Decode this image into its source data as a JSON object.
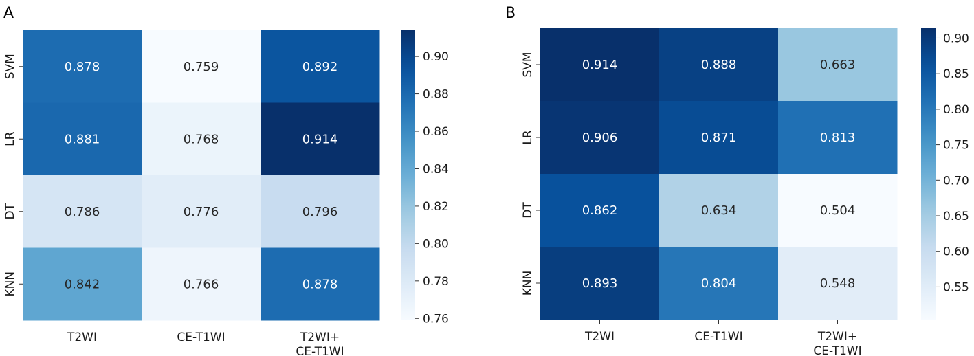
{
  "chart_data": [
    {
      "type": "heatmap",
      "panel_label": "A",
      "rows": [
        "SVM",
        "LR",
        "DT",
        "KNN"
      ],
      "columns": [
        [
          "T2WI"
        ],
        [
          "CE-T1WI"
        ],
        [
          "T2WI+",
          "CE-T1WI"
        ]
      ],
      "values": [
        [
          0.878,
          0.759,
          0.892
        ],
        [
          0.881,
          0.768,
          0.914
        ],
        [
          0.786,
          0.776,
          0.796
        ],
        [
          0.842,
          0.766,
          0.878
        ]
      ],
      "value_labels": [
        [
          "0.878",
          "0.759",
          "0.892"
        ],
        [
          "0.881",
          "0.768",
          "0.914"
        ],
        [
          "0.786",
          "0.776",
          "0.796"
        ],
        [
          "0.842",
          "0.766",
          "0.878"
        ]
      ],
      "colorbar": {
        "vmin": 0.759,
        "vmax": 0.914,
        "ticks": [
          0.76,
          0.78,
          0.8,
          0.82,
          0.84,
          0.86,
          0.88,
          0.9
        ],
        "tick_labels": [
          "0.76",
          "0.78",
          "0.80",
          "0.82",
          "0.84",
          "0.86",
          "0.88",
          "0.90"
        ]
      },
      "colormap": "Blues"
    },
    {
      "type": "heatmap",
      "panel_label": "B",
      "rows": [
        "SVM",
        "LR",
        "DT",
        "KNN"
      ],
      "columns": [
        [
          "T2WI"
        ],
        [
          "CE-T1WI"
        ],
        [
          "T2WI+",
          "CE-T1WI"
        ]
      ],
      "values": [
        [
          0.914,
          0.888,
          0.663
        ],
        [
          0.906,
          0.871,
          0.813
        ],
        [
          0.862,
          0.634,
          0.504
        ],
        [
          0.893,
          0.804,
          0.548
        ]
      ],
      "value_labels": [
        [
          "0.914",
          "0.888",
          "0.663"
        ],
        [
          "0.906",
          "0.871",
          "0.813"
        ],
        [
          "0.862",
          "0.634",
          "0.504"
        ],
        [
          "0.893",
          "0.804",
          "0.548"
        ]
      ],
      "colorbar": {
        "vmin": 0.504,
        "vmax": 0.914,
        "ticks": [
          0.55,
          0.6,
          0.65,
          0.7,
          0.75,
          0.8,
          0.85,
          0.9
        ],
        "tick_labels": [
          "0.55",
          "0.60",
          "0.65",
          "0.70",
          "0.75",
          "0.80",
          "0.85",
          "0.90"
        ]
      },
      "colormap": "Blues"
    }
  ],
  "colors": {
    "blues_ramp": [
      "#f7fbff",
      "#deebf7",
      "#c6dbef",
      "#9ecae1",
      "#6baed6",
      "#4292c6",
      "#2171b5",
      "#08519c",
      "#08306b"
    ],
    "cell_text_light": "#ffffff",
    "cell_text_dark": "#262626"
  }
}
